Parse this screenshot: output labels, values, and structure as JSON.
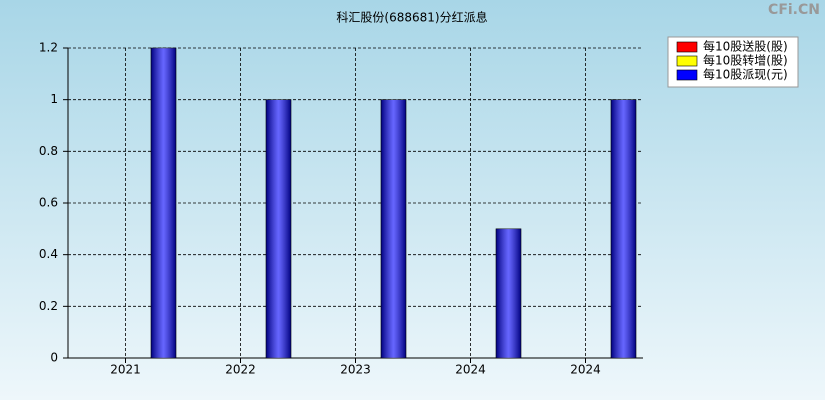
{
  "chart_data": {
    "type": "bar",
    "title": "科汇股份(688681)分红派息",
    "watermark": "CFi.CN",
    "categories": [
      "2021",
      "2022",
      "2023",
      "2024",
      "2024"
    ],
    "series": [
      {
        "name": "每10股送股(股)",
        "color": "#ff0000",
        "values": [
          0,
          0,
          0,
          0,
          0
        ]
      },
      {
        "name": "每10股转增(股)",
        "color": "#ffff00",
        "values": [
          0,
          0,
          0,
          0,
          0
        ]
      },
      {
        "name": "每10股派现(元)",
        "color": "#0000ff",
        "values": [
          1.2,
          1,
          1,
          0.5,
          1
        ]
      }
    ],
    "ylim": [
      0,
      1.2
    ],
    "yticks": [
      0,
      0.2,
      0.4,
      0.6,
      0.8,
      1,
      1.2
    ],
    "grid": true,
    "legend": "top-right"
  }
}
